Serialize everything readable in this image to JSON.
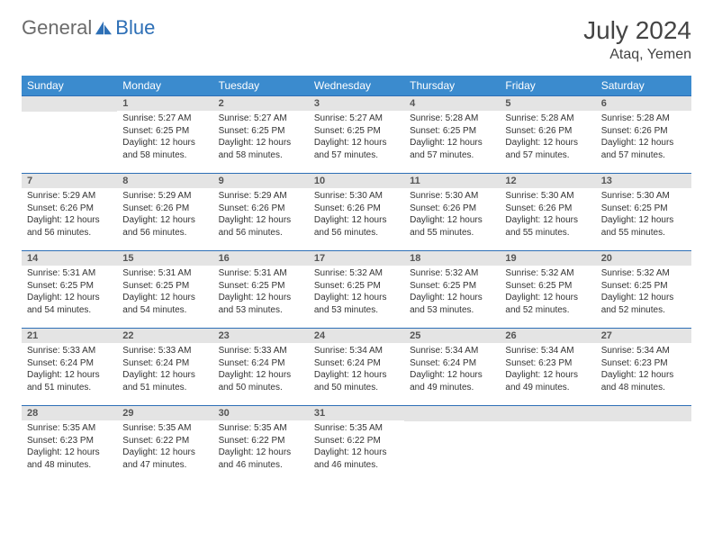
{
  "logo": {
    "general": "General",
    "blue": "Blue"
  },
  "title": "July 2024",
  "location": "Ataq, Yemen",
  "colors": {
    "header_bg": "#3b8bce",
    "header_text": "#ffffff",
    "daynum_bg": "#e4e4e4",
    "week_divider": "#2d6fb6",
    "logo_gray": "#6b6b6b",
    "logo_blue": "#2d6fb6"
  },
  "weekdays": [
    "Sunday",
    "Monday",
    "Tuesday",
    "Wednesday",
    "Thursday",
    "Friday",
    "Saturday"
  ],
  "weeks": [
    [
      null,
      {
        "n": "1",
        "sr": "Sunrise: 5:27 AM",
        "ss": "Sunset: 6:25 PM",
        "dl": "Daylight: 12 hours and 58 minutes."
      },
      {
        "n": "2",
        "sr": "Sunrise: 5:27 AM",
        "ss": "Sunset: 6:25 PM",
        "dl": "Daylight: 12 hours and 58 minutes."
      },
      {
        "n": "3",
        "sr": "Sunrise: 5:27 AM",
        "ss": "Sunset: 6:25 PM",
        "dl": "Daylight: 12 hours and 57 minutes."
      },
      {
        "n": "4",
        "sr": "Sunrise: 5:28 AM",
        "ss": "Sunset: 6:25 PM",
        "dl": "Daylight: 12 hours and 57 minutes."
      },
      {
        "n": "5",
        "sr": "Sunrise: 5:28 AM",
        "ss": "Sunset: 6:26 PM",
        "dl": "Daylight: 12 hours and 57 minutes."
      },
      {
        "n": "6",
        "sr": "Sunrise: 5:28 AM",
        "ss": "Sunset: 6:26 PM",
        "dl": "Daylight: 12 hours and 57 minutes."
      }
    ],
    [
      {
        "n": "7",
        "sr": "Sunrise: 5:29 AM",
        "ss": "Sunset: 6:26 PM",
        "dl": "Daylight: 12 hours and 56 minutes."
      },
      {
        "n": "8",
        "sr": "Sunrise: 5:29 AM",
        "ss": "Sunset: 6:26 PM",
        "dl": "Daylight: 12 hours and 56 minutes."
      },
      {
        "n": "9",
        "sr": "Sunrise: 5:29 AM",
        "ss": "Sunset: 6:26 PM",
        "dl": "Daylight: 12 hours and 56 minutes."
      },
      {
        "n": "10",
        "sr": "Sunrise: 5:30 AM",
        "ss": "Sunset: 6:26 PM",
        "dl": "Daylight: 12 hours and 56 minutes."
      },
      {
        "n": "11",
        "sr": "Sunrise: 5:30 AM",
        "ss": "Sunset: 6:26 PM",
        "dl": "Daylight: 12 hours and 55 minutes."
      },
      {
        "n": "12",
        "sr": "Sunrise: 5:30 AM",
        "ss": "Sunset: 6:26 PM",
        "dl": "Daylight: 12 hours and 55 minutes."
      },
      {
        "n": "13",
        "sr": "Sunrise: 5:30 AM",
        "ss": "Sunset: 6:25 PM",
        "dl": "Daylight: 12 hours and 55 minutes."
      }
    ],
    [
      {
        "n": "14",
        "sr": "Sunrise: 5:31 AM",
        "ss": "Sunset: 6:25 PM",
        "dl": "Daylight: 12 hours and 54 minutes."
      },
      {
        "n": "15",
        "sr": "Sunrise: 5:31 AM",
        "ss": "Sunset: 6:25 PM",
        "dl": "Daylight: 12 hours and 54 minutes."
      },
      {
        "n": "16",
        "sr": "Sunrise: 5:31 AM",
        "ss": "Sunset: 6:25 PM",
        "dl": "Daylight: 12 hours and 53 minutes."
      },
      {
        "n": "17",
        "sr": "Sunrise: 5:32 AM",
        "ss": "Sunset: 6:25 PM",
        "dl": "Daylight: 12 hours and 53 minutes."
      },
      {
        "n": "18",
        "sr": "Sunrise: 5:32 AM",
        "ss": "Sunset: 6:25 PM",
        "dl": "Daylight: 12 hours and 53 minutes."
      },
      {
        "n": "19",
        "sr": "Sunrise: 5:32 AM",
        "ss": "Sunset: 6:25 PM",
        "dl": "Daylight: 12 hours and 52 minutes."
      },
      {
        "n": "20",
        "sr": "Sunrise: 5:32 AM",
        "ss": "Sunset: 6:25 PM",
        "dl": "Daylight: 12 hours and 52 minutes."
      }
    ],
    [
      {
        "n": "21",
        "sr": "Sunrise: 5:33 AM",
        "ss": "Sunset: 6:24 PM",
        "dl": "Daylight: 12 hours and 51 minutes."
      },
      {
        "n": "22",
        "sr": "Sunrise: 5:33 AM",
        "ss": "Sunset: 6:24 PM",
        "dl": "Daylight: 12 hours and 51 minutes."
      },
      {
        "n": "23",
        "sr": "Sunrise: 5:33 AM",
        "ss": "Sunset: 6:24 PM",
        "dl": "Daylight: 12 hours and 50 minutes."
      },
      {
        "n": "24",
        "sr": "Sunrise: 5:34 AM",
        "ss": "Sunset: 6:24 PM",
        "dl": "Daylight: 12 hours and 50 minutes."
      },
      {
        "n": "25",
        "sr": "Sunrise: 5:34 AM",
        "ss": "Sunset: 6:24 PM",
        "dl": "Daylight: 12 hours and 49 minutes."
      },
      {
        "n": "26",
        "sr": "Sunrise: 5:34 AM",
        "ss": "Sunset: 6:23 PM",
        "dl": "Daylight: 12 hours and 49 minutes."
      },
      {
        "n": "27",
        "sr": "Sunrise: 5:34 AM",
        "ss": "Sunset: 6:23 PM",
        "dl": "Daylight: 12 hours and 48 minutes."
      }
    ],
    [
      {
        "n": "28",
        "sr": "Sunrise: 5:35 AM",
        "ss": "Sunset: 6:23 PM",
        "dl": "Daylight: 12 hours and 48 minutes."
      },
      {
        "n": "29",
        "sr": "Sunrise: 5:35 AM",
        "ss": "Sunset: 6:22 PM",
        "dl": "Daylight: 12 hours and 47 minutes."
      },
      {
        "n": "30",
        "sr": "Sunrise: 5:35 AM",
        "ss": "Sunset: 6:22 PM",
        "dl": "Daylight: 12 hours and 46 minutes."
      },
      {
        "n": "31",
        "sr": "Sunrise: 5:35 AM",
        "ss": "Sunset: 6:22 PM",
        "dl": "Daylight: 12 hours and 46 minutes."
      },
      null,
      null,
      null
    ]
  ]
}
